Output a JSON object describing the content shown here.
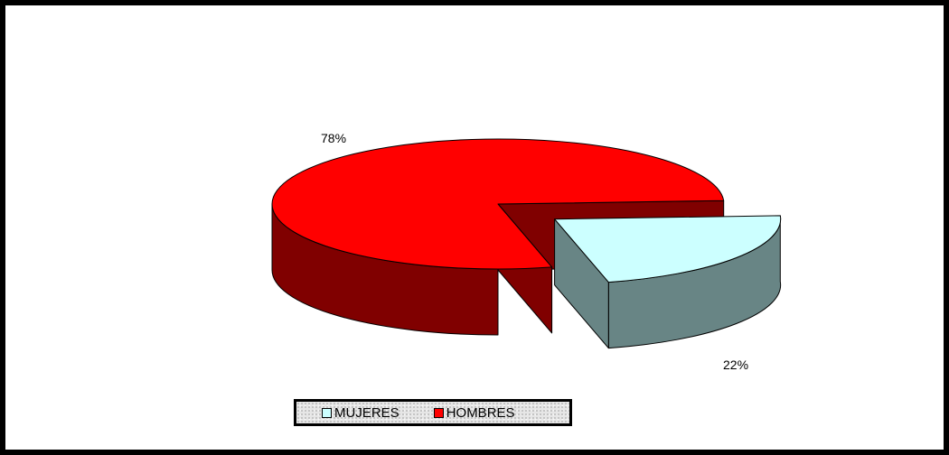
{
  "chart_data": {
    "type": "pie",
    "title": "",
    "labels": [
      "MUJERES",
      "HOMBRES"
    ],
    "values": [
      22,
      78
    ],
    "data_labels": [
      "22%",
      "78%"
    ],
    "colors": {
      "MUJERES": {
        "top": "#ccffff",
        "side": "#688585"
      },
      "HOMBRES": {
        "top": "#ff0000",
        "side": "#800000"
      }
    },
    "exploded": "MUJERES",
    "style": "3d",
    "legend_position": "bottom"
  },
  "legend": {
    "items": [
      {
        "label": "MUJERES",
        "color": "#ccffff"
      },
      {
        "label": "HOMBRES",
        "color": "#ff0000"
      }
    ]
  }
}
